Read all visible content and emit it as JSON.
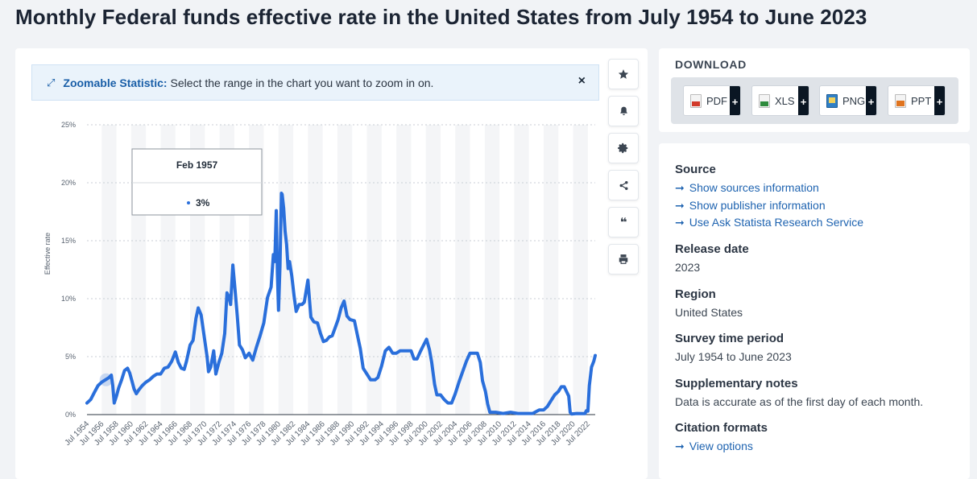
{
  "page": {
    "title": "Monthly Federal funds effective rate in the United States from July 1954 to June 2023"
  },
  "banner": {
    "label": "Zoomable Statistic:",
    "text": "Select the range in the chart you want to zoom in on.",
    "icon": "expand-icon",
    "close": "×"
  },
  "tooltip": {
    "date": "Feb 1957",
    "value": "3%"
  },
  "toolbar": [
    "star-icon",
    "bell-icon",
    "gear-icon",
    "share-icon",
    "quote-icon",
    "print-icon"
  ],
  "download": {
    "title": "DOWNLOAD",
    "buttons": [
      {
        "label": "PDF",
        "color": "#d23b2b"
      },
      {
        "label": "XLS",
        "color": "#2e8b3d"
      },
      {
        "label": "PNG",
        "color": "#2f7fc6"
      },
      {
        "label": "PPT",
        "color": "#e0741f"
      }
    ],
    "plus": "+"
  },
  "info": {
    "source_title": "Source",
    "source_links": [
      "Show sources information",
      "Show publisher information",
      "Use Ask Statista Research Service"
    ],
    "release_title": "Release date",
    "release_value": "2023",
    "region_title": "Region",
    "region_value": "United States",
    "period_title": "Survey time period",
    "period_value": "July 1954 to June 2023",
    "notes_title": "Supplementary notes",
    "notes_value": "Data is accurate as of the first day of each month.",
    "citation_title": "Citation formats",
    "citation_link": "View options",
    "arrow": "➞"
  },
  "chart_data": {
    "type": "line",
    "ylabel": "Effective rate",
    "ylim": [
      0,
      25
    ],
    "yticks": [
      "0%",
      "5%",
      "10%",
      "15%",
      "20%",
      "25%"
    ],
    "xticks": [
      "Jul 1954",
      "Jul 1956",
      "Jul 1958",
      "Jul 1960",
      "Jul 1962",
      "Jul 1964",
      "Jul 1966",
      "Jul 1968",
      "Jul 1970",
      "Jul 1972",
      "Jul 1974",
      "Jul 1976",
      "Jul 1978",
      "Jul 1980",
      "Jul 1982",
      "Jul 1984",
      "Jul 1986",
      "Jul 1988",
      "Jul 1990",
      "Jul 1992",
      "Jul 1994",
      "Jul 1996",
      "Jul 1998",
      "Jul 2000",
      "Jul 2002",
      "Jul 2004",
      "Jul 2006",
      "Jul 2008",
      "Jul 2010",
      "Jul 2012",
      "Jul 2014",
      "Jul 2016",
      "Jul 2018",
      "Jul 2020",
      "Jul 2022"
    ],
    "highlight": {
      "x": 1957.08,
      "y": 3.0
    },
    "color": "#2a6fdb",
    "grid": true,
    "x": [
      1954.5,
      1955.0,
      1955.5,
      1956.0,
      1956.5,
      1957.0,
      1957.5,
      1957.8,
      1958.0,
      1958.2,
      1958.5,
      1958.8,
      1959.2,
      1959.6,
      1960.0,
      1960.3,
      1960.6,
      1960.9,
      1961.2,
      1961.5,
      1962.0,
      1962.5,
      1963.0,
      1963.5,
      1964.0,
      1964.5,
      1965.0,
      1965.5,
      1966.0,
      1966.5,
      1966.9,
      1967.3,
      1967.7,
      1968.0,
      1968.5,
      1968.9,
      1969.3,
      1969.6,
      1970.0,
      1970.4,
      1970.8,
      1971.0,
      1971.3,
      1971.7,
      1972.0,
      1972.4,
      1972.8,
      1973.2,
      1973.5,
      1973.8,
      1974.0,
      1974.3,
      1974.6,
      1974.9,
      1975.2,
      1975.6,
      1976.0,
      1976.5,
      1977.0,
      1977.5,
      1978.0,
      1978.5,
      1979.0,
      1979.5,
      1979.8,
      1980.0,
      1980.2,
      1980.35,
      1980.5,
      1980.7,
      1980.9,
      1981.0,
      1981.2,
      1981.4,
      1981.6,
      1981.8,
      1982.0,
      1982.3,
      1982.6,
      1982.9,
      1983.3,
      1983.7,
      1984.0,
      1984.5,
      1984.9,
      1985.3,
      1985.8,
      1986.2,
      1986.6,
      1987.0,
      1987.4,
      1987.8,
      1988.2,
      1988.6,
      1989.0,
      1989.4,
      1989.8,
      1990.2,
      1990.8,
      1991.2,
      1991.6,
      1992.0,
      1992.6,
      1993.0,
      1993.6,
      1994.0,
      1994.5,
      1995.0,
      1995.5,
      1996.0,
      1996.5,
      1997.0,
      1997.5,
      1998.0,
      1998.5,
      1998.9,
      1999.3,
      1999.8,
      2000.2,
      2000.6,
      2001.0,
      2001.3,
      2001.7,
      2002.0,
      2002.5,
      2003.0,
      2003.5,
      2004.0,
      2004.5,
      2005.0,
      2005.5,
      2006.0,
      2006.5,
      2007.0,
      2007.5,
      2007.9,
      2008.2,
      2008.6,
      2008.9,
      2009.2,
      2010.0,
      2011.0,
      2012.0,
      2013.0,
      2014.0,
      2015.0,
      2015.9,
      2016.5,
      2017.0,
      2017.5,
      2018.0,
      2018.5,
      2018.9,
      2019.3,
      2019.6,
      2019.9,
      2020.1,
      2020.3,
      2021.0,
      2021.8,
      2022.1,
      2022.3,
      2022.5,
      2022.7,
      2023.0,
      2023.3,
      2023.5
    ],
    "y": [
      1.0,
      1.3,
      1.9,
      2.5,
      2.8,
      3.0,
      3.2,
      3.4,
      2.5,
      1.0,
      1.6,
      2.3,
      3.0,
      3.8,
      4.0,
      3.6,
      2.9,
      2.2,
      1.8,
      2.1,
      2.5,
      2.8,
      3.0,
      3.3,
      3.5,
      3.5,
      4.0,
      4.1,
      4.6,
      5.4,
      4.5,
      4.0,
      3.9,
      4.6,
      6.0,
      6.4,
      8.3,
      9.2,
      8.6,
      6.8,
      5.0,
      3.7,
      4.1,
      5.5,
      3.5,
      4.5,
      5.3,
      7.0,
      10.5,
      10.1,
      9.5,
      12.9,
      10.8,
      8.5,
      6.0,
      5.6,
      4.9,
      5.3,
      4.7,
      5.8,
      6.8,
      7.9,
      10.1,
      11.0,
      13.8,
      13.2,
      17.6,
      12.2,
      9.0,
      12.8,
      19.1,
      19.0,
      17.8,
      15.8,
      14.7,
      12.6,
      13.2,
      12.0,
      10.3,
      8.9,
      9.5,
      9.5,
      9.7,
      11.6,
      8.4,
      8.0,
      7.9,
      7.0,
      6.3,
      6.4,
      6.7,
      6.8,
      7.5,
      8.2,
      9.2,
      9.8,
      8.5,
      8.2,
      8.1,
      6.9,
      5.7,
      4.0,
      3.4,
      3.0,
      3.0,
      3.2,
      4.2,
      5.5,
      5.8,
      5.3,
      5.3,
      5.5,
      5.5,
      5.5,
      5.5,
      4.8,
      4.8,
      5.5,
      6.0,
      6.5,
      5.6,
      4.5,
      2.6,
      1.7,
      1.7,
      1.3,
      1.0,
      1.0,
      1.8,
      2.8,
      3.7,
      4.6,
      5.3,
      5.3,
      5.3,
      4.5,
      2.9,
      2.0,
      0.9,
      0.2,
      0.2,
      0.1,
      0.2,
      0.1,
      0.1,
      0.1,
      0.4,
      0.4,
      0.7,
      1.2,
      1.7,
      2.0,
      2.4,
      2.4,
      2.0,
      1.6,
      0.2,
      0.05,
      0.1,
      0.08,
      0.08,
      0.33,
      0.3,
      2.5,
      4.1,
      4.6,
      5.1
    ]
  }
}
